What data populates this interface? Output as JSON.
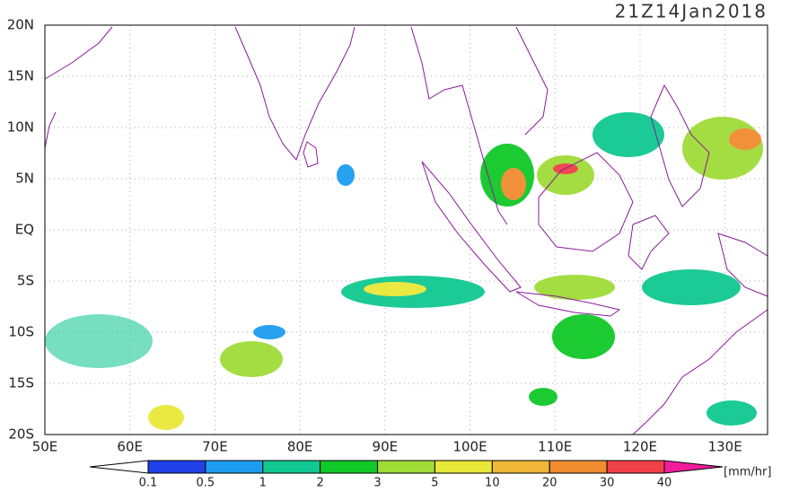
{
  "title": "21Z14Jan2018",
  "map": {
    "xlim": [
      50,
      135
    ],
    "ylim": [
      -20,
      20
    ],
    "lon_ticks": [
      {
        "value": 50,
        "label": "50E"
      },
      {
        "value": 60,
        "label": "60E"
      },
      {
        "value": 70,
        "label": "70E"
      },
      {
        "value": 80,
        "label": "80E"
      },
      {
        "value": 90,
        "label": "90E"
      },
      {
        "value": 100,
        "label": "100E"
      },
      {
        "value": 110,
        "label": "110E"
      },
      {
        "value": 120,
        "label": "120E"
      },
      {
        "value": 130,
        "label": "130E"
      }
    ],
    "lat_ticks": [
      {
        "value": 20,
        "label": "20N"
      },
      {
        "value": 15,
        "label": "15N"
      },
      {
        "value": 10,
        "label": "10N"
      },
      {
        "value": 5,
        "label": "5N"
      },
      {
        "value": 0,
        "label": "EQ"
      },
      {
        "value": -5,
        "label": "5S"
      },
      {
        "value": -10,
        "label": "10S"
      },
      {
        "value": -15,
        "label": "15S"
      },
      {
        "value": -20,
        "label": "20S"
      }
    ],
    "grid": true
  },
  "colorbar": {
    "levels": [
      0.1,
      0.5,
      1,
      2,
      3,
      5,
      10,
      20,
      30,
      40
    ],
    "colors": [
      "#ffffff",
      "#2040e8",
      "#1c9cf0",
      "#10c890",
      "#10c828",
      "#a0dc38",
      "#e8e838",
      "#f0b838",
      "#f08c30",
      "#f04048",
      "#f01c9c"
    ],
    "unit": "[mm/hr]"
  }
}
